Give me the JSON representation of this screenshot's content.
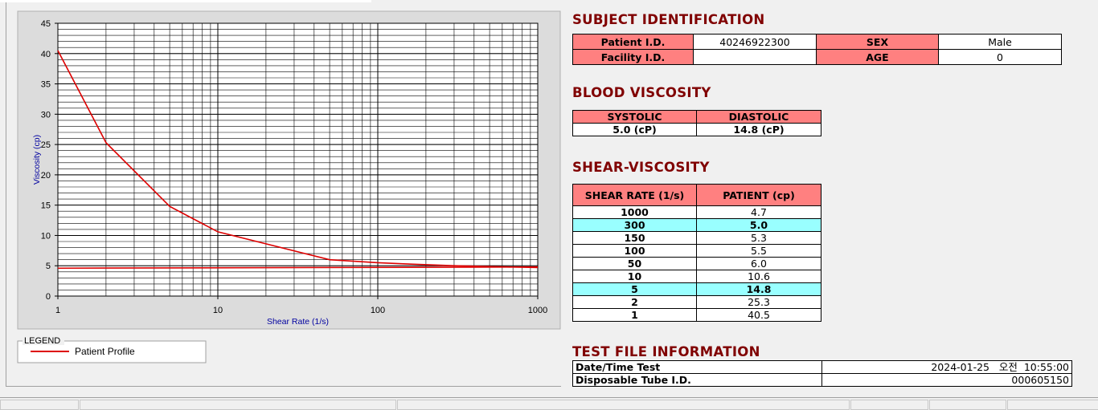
{
  "chart_data": {
    "type": "line",
    "x_label": "Shear Rate (1/s)",
    "y_label": "Viscosity (cp)",
    "legend_title": "LEGEND",
    "xlim": [
      1,
      1000
    ],
    "xticks": [
      1,
      10,
      100,
      1000
    ],
    "xscale": "log",
    "ylim": [
      0,
      45
    ],
    "yticks": [
      0,
      5,
      10,
      15,
      20,
      25,
      30,
      35,
      40,
      45
    ],
    "grid": true,
    "series": [
      {
        "name": "Patient Profile",
        "color": "#dd0000",
        "x": [
          1,
          2,
          5,
          10,
          50,
          100,
          150,
          300,
          1000
        ],
        "values": [
          40.5,
          25.3,
          14.8,
          10.6,
          6.0,
          5.5,
          5.3,
          5.0,
          4.7
        ]
      },
      {
        "color": "#dd0000",
        "x": [
          1,
          1000
        ],
        "values": [
          4.6,
          4.8
        ]
      }
    ]
  },
  "subject": {
    "title": "SUBJECT IDENTIFICATION",
    "rows": [
      [
        "Patient I.D.",
        "40246922300",
        "SEX",
        "Male"
      ],
      [
        "Facility I.D.",
        null,
        "AGE",
        "0"
      ]
    ]
  },
  "blood": {
    "title": "BLOOD VISCOSITY",
    "headers": [
      "SYSTOLIC",
      "DIASTOLIC"
    ],
    "values": [
      "5.0 (cP)",
      "14.8 (cP)"
    ]
  },
  "shear": {
    "title": "SHEAR-VISCOSITY",
    "headers": [
      "SHEAR RATE (1/s)",
      "PATIENT (cp)"
    ],
    "highlight": [
      1,
      6
    ],
    "rows": [
      [
        "1000",
        "4.7"
      ],
      [
        "300",
        "5.0"
      ],
      [
        "150",
        "5.3"
      ],
      [
        "100",
        "5.5"
      ],
      [
        "50",
        "6.0"
      ],
      [
        "10",
        "10.6"
      ],
      [
        "5",
        "14.8"
      ],
      [
        "2",
        "25.3"
      ],
      [
        "1",
        "40.5"
      ]
    ]
  },
  "test_file": {
    "title": "TEST FILE INFORMATION",
    "rows": [
      [
        "Date/Time Test",
        "2024-01-25   오전  10:55:00"
      ],
      [
        "Disposable Tube I.D.",
        "000605150"
      ]
    ]
  }
}
